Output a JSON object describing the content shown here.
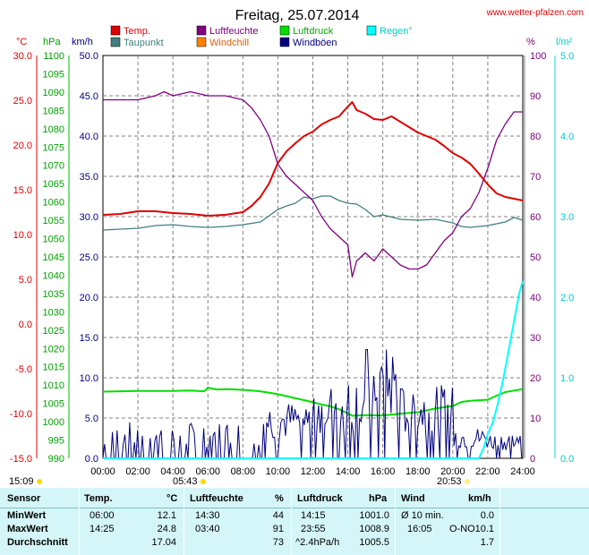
{
  "header": {
    "title": "Freitag, 25.07.2014",
    "site": "www.wetter-pfalzen.com"
  },
  "legend": [
    {
      "label": "Temp.",
      "color": "#e00000",
      "text_color": "#e00000"
    },
    {
      "label": "Luftfeuchte",
      "color": "#800080",
      "text_color": "#800080"
    },
    {
      "label": "Luftdruck",
      "color": "#00e000",
      "text_color": "#00b000"
    },
    {
      "label": "Regen°",
      "color": "#00ffff",
      "text_color": "#00cccc"
    },
    {
      "label": "Taupunkt",
      "color": "#408080",
      "text_color": "#408080"
    },
    {
      "label": "Windchill",
      "color": "#ff8000",
      "text_color": "#e06000"
    },
    {
      "label": "Windböen",
      "color": "#000080",
      "text_color": "#000080"
    }
  ],
  "axis_units": {
    "temp": "°C",
    "pressure": "hPa",
    "wind": "km/h",
    "humidity": "%",
    "rain": "l/m²"
  },
  "sun": {
    "sunrise": "05:43",
    "sunset": "20:53",
    "left_time": "15:09"
  },
  "chart_data": {
    "type": "line",
    "x_label_ticks": [
      "00:00",
      "02:00",
      "04:00",
      "06:00",
      "08:00",
      "10:00",
      "12:00",
      "14:00",
      "16:00",
      "18:00",
      "20:00",
      "22:00",
      "24:00"
    ],
    "xlim": [
      0,
      24
    ],
    "axes": {
      "temp": {
        "range": [
          -15,
          30
        ],
        "ticks": [
          "30.0",
          "25.0",
          "20.0",
          "15.0",
          "10.0",
          "5.0",
          "0.0",
          "-5.0",
          "-10.0",
          "-15.0"
        ]
      },
      "pressure": {
        "range": [
          990,
          1100
        ],
        "ticks": [
          "1100",
          "1095",
          "1090",
          "1085",
          "1080",
          "1075",
          "1070",
          "1065",
          "1060",
          "1055",
          "1050",
          "1045",
          "1040",
          "1035",
          "1030",
          "1025",
          "1020",
          "1015",
          "1010",
          "1005",
          "1000",
          "995",
          "990"
        ]
      },
      "wind": {
        "range": [
          0,
          50
        ],
        "ticks": [
          "50.0",
          "45.0",
          "40.0",
          "35.0",
          "30.0",
          "25.0",
          "20.0",
          "15.0",
          "10.0",
          "5.0",
          "0.0"
        ]
      },
      "humidity": {
        "range": [
          0,
          100
        ],
        "ticks": [
          "100",
          "90",
          "80",
          "70",
          "60",
          "50",
          "40",
          "30",
          "20",
          "10",
          "0"
        ]
      },
      "rain": {
        "range": [
          0,
          5
        ],
        "ticks": [
          "5.0",
          "4.0",
          "3.0",
          "2.0",
          "1.0",
          "0.0"
        ]
      }
    },
    "series": [
      {
        "name": "Temp.",
        "axis": "temp",
        "x": [
          0,
          1,
          2,
          3,
          4,
          5,
          6,
          7,
          8,
          8.5,
          9,
          9.5,
          10,
          10.5,
          11,
          11.5,
          12,
          12.5,
          13,
          13.5,
          14,
          14.25,
          14.5,
          15,
          15.5,
          16,
          16.5,
          17,
          17.5,
          18,
          18.5,
          19,
          19.5,
          20,
          20.5,
          21,
          21.5,
          22,
          22.5,
          23,
          24
        ],
        "y": [
          12.2,
          12.3,
          12.6,
          12.6,
          12.4,
          12.3,
          12.1,
          12.2,
          12.5,
          13.2,
          14.2,
          15.7,
          18.0,
          19.3,
          20.2,
          21.0,
          21.5,
          22.3,
          22.8,
          23.2,
          24.3,
          24.8,
          23.9,
          23.5,
          22.9,
          22.8,
          23.2,
          22.6,
          22.0,
          21.4,
          21.0,
          20.6,
          19.9,
          19.1,
          18.6,
          17.9,
          16.8,
          15.6,
          14.6,
          14.2,
          13.8
        ]
      },
      {
        "name": "Taupunkt",
        "axis": "temp",
        "x": [
          0,
          1,
          2,
          3,
          4,
          5,
          6,
          7,
          8,
          9,
          10,
          10.5,
          11,
          11.5,
          12,
          12.5,
          13,
          13.5,
          14,
          14.5,
          15,
          15.5,
          16,
          17,
          18,
          19,
          20,
          20.5,
          21,
          22,
          23,
          23.5,
          24
        ],
        "y": [
          10.5,
          10.6,
          10.7,
          11.0,
          11.1,
          10.9,
          10.8,
          10.9,
          11.1,
          11.4,
          12.8,
          13.2,
          13.5,
          14.2,
          14.0,
          14.3,
          14.3,
          13.8,
          13.5,
          13.4,
          12.8,
          12.0,
          12.2,
          11.7,
          11.6,
          11.7,
          11.3,
          10.9,
          10.8,
          11.0,
          11.4,
          11.9,
          11.6
        ]
      },
      {
        "name": "Luftfeuchte",
        "axis": "humidity",
        "x": [
          0,
          1,
          2,
          3,
          3.5,
          4,
          5,
          6,
          7,
          8,
          8.5,
          9,
          9.5,
          10,
          10.5,
          11,
          11.5,
          12,
          12.5,
          13,
          13.5,
          14,
          14.25,
          14.5,
          15,
          15.5,
          16,
          16.5,
          17,
          17.5,
          18,
          18.5,
          19,
          19.5,
          20,
          20.5,
          21,
          21.5,
          22,
          22.5,
          23,
          23.5,
          24
        ],
        "y": [
          89,
          89,
          89,
          90,
          91,
          90,
          91,
          90,
          90,
          89,
          87,
          84,
          80,
          73,
          70,
          68,
          66,
          64,
          60,
          57,
          55,
          53,
          45,
          49,
          51,
          49,
          52,
          50,
          48,
          47,
          47,
          48,
          51,
          54,
          56,
          60,
          62,
          66,
          72,
          79,
          83,
          86,
          86
        ]
      },
      {
        "name": "Luftdruck",
        "axis": "pressure",
        "x": [
          0,
          1,
          2,
          3,
          4,
          5,
          5.8,
          6,
          6.5,
          7,
          8,
          9,
          10,
          10.5,
          11,
          11.5,
          12,
          12.5,
          13,
          13.5,
          14,
          14.25,
          15,
          16,
          17,
          18,
          19,
          20,
          20.5,
          21,
          22,
          22.5,
          23,
          24
        ],
        "y": [
          1008.2,
          1008.3,
          1008.4,
          1008.4,
          1008.4,
          1008.5,
          1008.3,
          1009.3,
          1008.8,
          1008.9,
          1008.7,
          1008.3,
          1007.5,
          1007.0,
          1006.4,
          1005.9,
          1005.3,
          1004.7,
          1004.2,
          1003.4,
          1002.3,
          1001.6,
          1001.8,
          1001.7,
          1002.2,
          1002.6,
          1003.6,
          1004.3,
          1005.4,
          1005.7,
          1006.0,
          1007.1,
          1008.1,
          1008.9
        ]
      },
      {
        "name": "Windböen",
        "axis": "wind",
        "style": "gusts"
      },
      {
        "name": "Regen°",
        "axis": "rain",
        "x": [
          0,
          21.5,
          21.8,
          22.0,
          22.3,
          22.6,
          22.9,
          23.2,
          23.5,
          23.8,
          24
        ],
        "y": [
          0,
          0,
          0.15,
          0.3,
          0.45,
          0.7,
          1.0,
          1.35,
          1.7,
          2.05,
          2.2
        ]
      }
    ]
  },
  "table": {
    "headers": {
      "sensor": "Sensor",
      "temp": "Temp.",
      "temp_unit": "°C",
      "hum": "Luftfeuchte",
      "hum_unit": "%",
      "press": "Luftdruck",
      "press_unit": "hPa",
      "wind": "Wind",
      "wind_unit": "km/h"
    },
    "rows": [
      {
        "label": "MinWert",
        "temp_time": "06:00",
        "temp_val": "12.1",
        "hum_time": "14:30",
        "hum_val": "44",
        "press_time": "14:15",
        "press_val": "1001.0",
        "wind_time": "Ø 10 min.",
        "wind_val": "0.0"
      },
      {
        "label": "MaxWert",
        "temp_time": "14:25",
        "temp_val": "24.8",
        "hum_time": "03:40",
        "hum_val": "91",
        "press_time": "23:55",
        "press_val": "1008.9",
        "wind_time": "16:05",
        "wind_dir": "O-NO",
        "wind_val": "10.1"
      },
      {
        "label": "Durchschnitt",
        "temp_time": "",
        "temp_val": "17.04",
        "hum_time": "",
        "hum_val": "73",
        "press_time": "^2.4hPa/h",
        "press_val": "1005.5",
        "wind_time": "",
        "wind_val": "1.7"
      }
    ]
  }
}
